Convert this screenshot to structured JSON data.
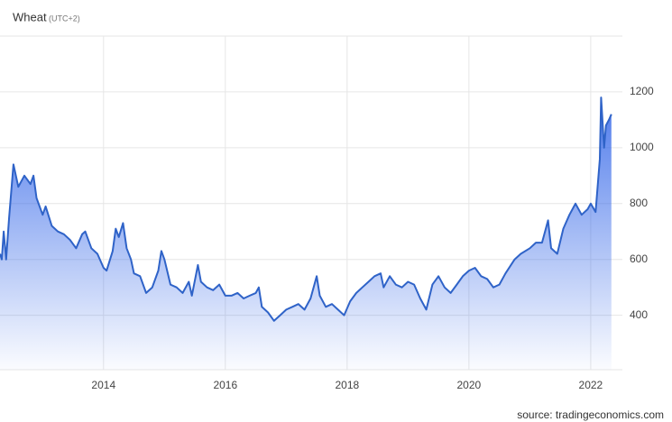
{
  "chart_data": {
    "type": "line",
    "title": "Wheat",
    "subtitle": "(UTC+2)",
    "source": "source: tradingeconomics.com",
    "x": [
      2012.3,
      2012.33,
      2012.36,
      2012.4,
      2012.45,
      2012.52,
      2012.6,
      2012.7,
      2012.8,
      2012.85,
      2012.9,
      2013.0,
      2013.05,
      2013.15,
      2013.25,
      2013.35,
      2013.45,
      2013.55,
      2013.65,
      2013.7,
      2013.8,
      2013.9,
      2014.0,
      2014.05,
      2014.15,
      2014.2,
      2014.25,
      2014.32,
      2014.38,
      2014.45,
      2014.5,
      2014.6,
      2014.7,
      2014.8,
      2014.9,
      2014.95,
      2015.0,
      2015.1,
      2015.2,
      2015.3,
      2015.4,
      2015.45,
      2015.55,
      2015.6,
      2015.7,
      2015.8,
      2015.9,
      2016.0,
      2016.1,
      2016.2,
      2016.3,
      2016.4,
      2016.5,
      2016.55,
      2016.6,
      2016.7,
      2016.8,
      2016.9,
      2017.0,
      2017.1,
      2017.2,
      2017.3,
      2017.4,
      2017.5,
      2017.55,
      2017.65,
      2017.75,
      2017.85,
      2017.95,
      2018.05,
      2018.15,
      2018.25,
      2018.35,
      2018.45,
      2018.55,
      2018.6,
      2018.7,
      2018.8,
      2018.9,
      2019.0,
      2019.1,
      2019.2,
      2019.3,
      2019.4,
      2019.5,
      2019.6,
      2019.7,
      2019.8,
      2019.9,
      2020.0,
      2020.1,
      2020.2,
      2020.3,
      2020.4,
      2020.5,
      2020.6,
      2020.75,
      2020.85,
      2021.0,
      2021.1,
      2021.2,
      2021.3,
      2021.35,
      2021.45,
      2021.55,
      2021.65,
      2021.75,
      2021.85,
      2021.95,
      2022.0,
      2022.08,
      2022.15,
      2022.17,
      2022.22,
      2022.25,
      2022.3,
      2022.34
    ],
    "series": [
      {
        "name": "Wheat",
        "color": "#2f63c8",
        "values": [
          620,
          600,
          700,
          600,
          750,
          940,
          860,
          900,
          870,
          900,
          820,
          760,
          790,
          720,
          700,
          690,
          670,
          640,
          690,
          700,
          640,
          620,
          570,
          560,
          630,
          710,
          680,
          730,
          640,
          600,
          550,
          540,
          480,
          500,
          560,
          630,
          600,
          510,
          500,
          480,
          520,
          470,
          580,
          520,
          500,
          490,
          510,
          470,
          470,
          480,
          460,
          470,
          480,
          500,
          430,
          410,
          380,
          400,
          420,
          430,
          440,
          420,
          460,
          540,
          470,
          430,
          440,
          420,
          400,
          450,
          480,
          500,
          520,
          540,
          550,
          500,
          540,
          510,
          500,
          520,
          510,
          460,
          420,
          510,
          540,
          500,
          480,
          510,
          540,
          560,
          570,
          540,
          530,
          500,
          510,
          550,
          600,
          620,
          640,
          660,
          660,
          740,
          640,
          620,
          710,
          760,
          800,
          760,
          780,
          800,
          770,
          960,
          1180,
          1000,
          1080,
          1100,
          1120
        ]
      }
    ],
    "xlim": [
      2012.3,
      2022.52
    ],
    "xticks": [
      2014,
      2016,
      2018,
      2020,
      2022
    ],
    "ylim": [
      205,
      1400
    ],
    "yticks": [
      400,
      600,
      800,
      1000,
      1200
    ],
    "grid": true
  }
}
